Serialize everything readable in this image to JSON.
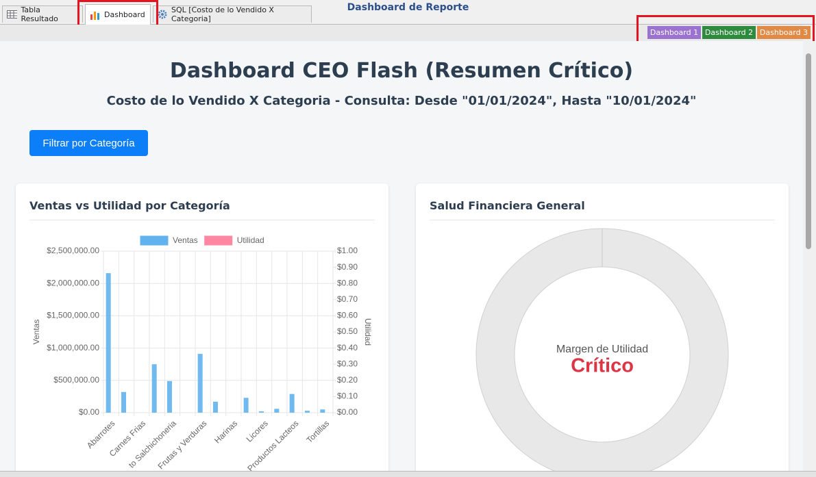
{
  "tabs": [
    "Tabla Resultado",
    "Dashboard",
    "SQL [Costo de lo Vendido X Categoria]"
  ],
  "header": {
    "title": "Dashboard de Reporte",
    "buttons": [
      "Dashboard 1",
      "Dashboard 2",
      "Dashboard 3"
    ]
  },
  "page": {
    "title": "Dashboard CEO Flash (Resumen Crítico)",
    "subtitle": "Costo de lo Vendido X Categoria - Consulta: Desde \"01/01/2024\", Hasta \"10/01/2024\"",
    "filter_button": "Filtrar por Categoría"
  },
  "chart_data": {
    "type": "bar",
    "title": "Ventas vs Utilidad por Categoría",
    "categories": [
      "Abarrotes",
      null,
      "Carnes Frias",
      null,
      "to Salchichoneria",
      null,
      "Frutas y Verduras",
      null,
      "Harinas",
      null,
      "Licores",
      null,
      "Productos Lacteos",
      null,
      "Tortillas"
    ],
    "series": [
      {
        "name": "Ventas",
        "color": "#62b2ee",
        "values": [
          2160000,
          320000,
          0,
          750000,
          490000,
          0,
          910000,
          170000,
          0,
          230000,
          20000,
          60000,
          290000,
          30000,
          50000
        ]
      },
      {
        "name": "Utilidad",
        "color": "#ff87a1",
        "axis": "y2",
        "values": [
          0,
          0,
          0,
          0,
          0,
          0,
          0,
          0,
          0,
          0,
          0,
          0,
          0,
          0,
          0
        ]
      }
    ],
    "ylabel": "Ventas",
    "y2label": "Utilidad",
    "ylim": [
      0,
      2500000
    ],
    "yticks": [
      {
        "value": 0,
        "label": "$0.00"
      },
      {
        "value": 500000,
        "label": "$500,000.00"
      },
      {
        "value": 1000000,
        "label": "$1,000,000.00"
      },
      {
        "value": 1500000,
        "label": "$1,500,000.00"
      },
      {
        "value": 2000000,
        "label": "$2,000,000.00"
      },
      {
        "value": 2500000,
        "label": "$2,500,000.00"
      }
    ],
    "y2lim": [
      0,
      1
    ],
    "y2ticks": [
      {
        "value": 0,
        "label": "$0.00"
      },
      {
        "value": 0.1,
        "label": "$0.10"
      },
      {
        "value": 0.2,
        "label": "$0.20"
      },
      {
        "value": 0.3,
        "label": "$0.30"
      },
      {
        "value": 0.4,
        "label": "$0.40"
      },
      {
        "value": 0.5,
        "label": "$0.50"
      },
      {
        "value": 0.6,
        "label": "$0.60"
      },
      {
        "value": 0.7,
        "label": "$0.70"
      },
      {
        "value": 0.8,
        "label": "$0.80"
      },
      {
        "value": 0.9,
        "label": "$0.90"
      },
      {
        "value": 1,
        "label": "$1.00"
      }
    ],
    "grid": true,
    "legend": "top"
  },
  "health": {
    "title": "Salud Financiera General",
    "center_label": "Margen de Utilidad",
    "status": "Crítico"
  }
}
